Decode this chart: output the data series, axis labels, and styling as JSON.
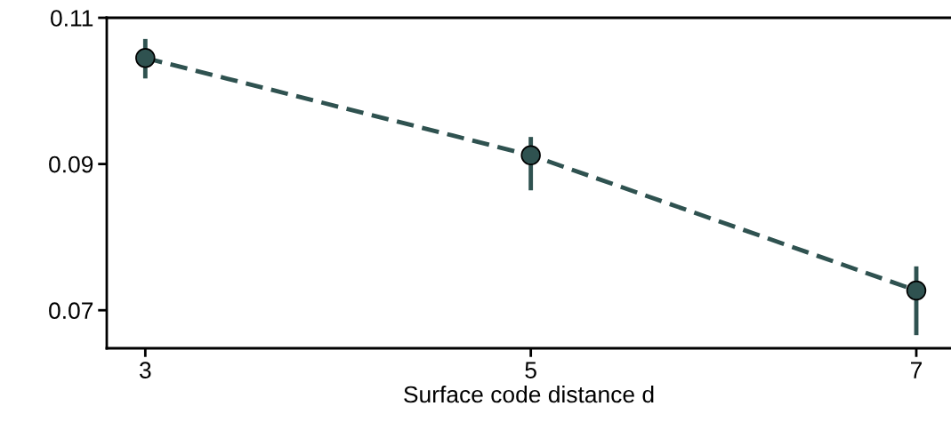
{
  "chart_data": {
    "type": "line",
    "xlabel": "Surface code distance d",
    "x": [
      3,
      5,
      7
    ],
    "series": [
      {
        "color": "#2f5250",
        "values": [
          0.1045,
          0.0912,
          0.0727
        ],
        "errors": [
          [
            0.1017,
            0.1071
          ],
          [
            0.0864,
            0.0937
          ],
          [
            0.0666,
            0.076
          ]
        ]
      }
    ],
    "xlim": [
      2.8,
      7.18
    ],
    "xticks": [
      3,
      5,
      7
    ],
    "ylim": [
      0.0648,
      0.11
    ],
    "yticks": [
      0.07,
      0.09,
      0.11
    ],
    "marker": "circle",
    "line_style": "dashed",
    "grid": false,
    "legend": false
  }
}
